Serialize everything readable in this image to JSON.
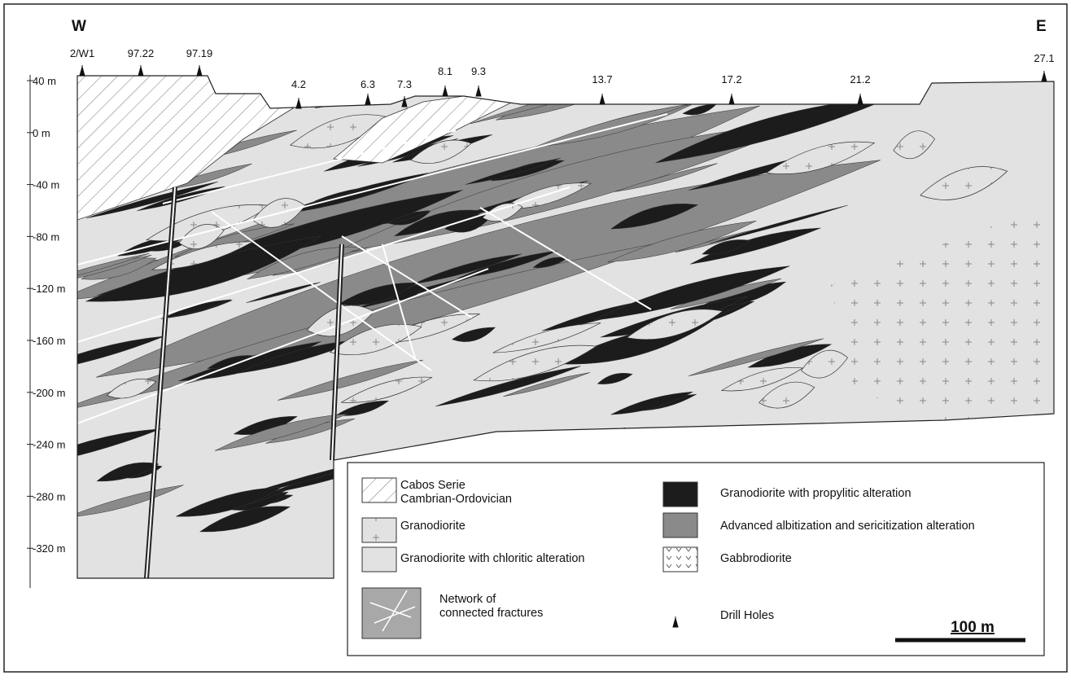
{
  "compass": {
    "west": "W",
    "east": "E"
  },
  "drill_holes": [
    "2/W1",
    "97.22",
    "97.19",
    "4.2",
    "6.3",
    "7.3",
    "8.1",
    "9.3",
    "13.7",
    "17.2",
    "21.2",
    "27.1"
  ],
  "depth_labels": [
    "40 m",
    "0 m",
    "-40 m",
    "-80 m",
    "-120 m",
    "-160 m",
    "-200 m",
    "-240 m",
    "-280 m",
    "-320 m"
  ],
  "legend": {
    "items": [
      {
        "lines": [
          "Cabos Serie",
          "Cambrian-Ordovician"
        ]
      },
      {
        "lines": [
          "Granodiorite"
        ]
      },
      {
        "lines": [
          "Granodiorite with chloritic alteration"
        ]
      },
      {
        "lines": [
          "Granodiorite with propylitic alteration"
        ]
      },
      {
        "lines": [
          "Advanced albitization and sericitization alteration"
        ]
      },
      {
        "lines": [
          "Gabbrodiorite"
        ]
      },
      {
        "lines": [
          "Network of",
          "connected fractures"
        ]
      },
      {
        "lines": [
          "Drill Holes"
        ]
      }
    ]
  },
  "scale_bar": "100 m"
}
